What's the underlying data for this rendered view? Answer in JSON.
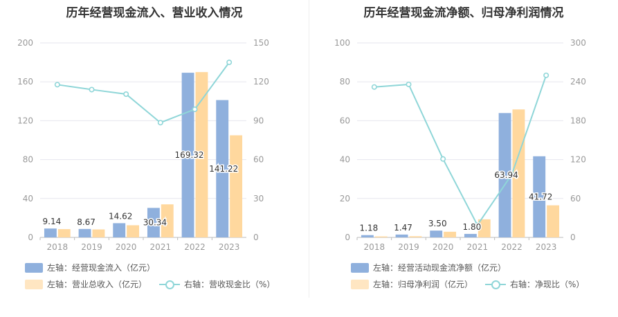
{
  "chart_data": [
    {
      "type": "bar",
      "title": "历年经营现金流入、营业收入情况",
      "categories": [
        "2018",
        "2019",
        "2020",
        "2021",
        "2022",
        "2023"
      ],
      "left_axis": {
        "ticks": [
          "0",
          "40",
          "80",
          "120",
          "160",
          "200"
        ],
        "ylim": [
          0,
          200
        ]
      },
      "right_axis": {
        "ticks": [
          "0",
          "30",
          "60",
          "90",
          "120",
          "150"
        ],
        "ylim": [
          0,
          150
        ]
      },
      "series": [
        {
          "name": "左轴：经营现金流入（亿元）",
          "kind": "bar",
          "axis": "left",
          "color": "#8fb0dd",
          "values": [
            9.14,
            8.67,
            14.62,
            30.34,
            169.32,
            141.22
          ],
          "labels": [
            "9.14",
            "8.67",
            "14.62",
            "30.34",
            "169.32",
            "141.22"
          ]
        },
        {
          "name": "左轴：营业总收入（亿元）",
          "kind": "bar",
          "axis": "left",
          "color": "#ffd89e",
          "values": [
            8.5,
            8.2,
            12.5,
            34.0,
            170.0,
            105.0
          ]
        },
        {
          "name": "右轴：营收现金比（%）",
          "kind": "line",
          "axis": "right",
          "color": "#8fd6d8",
          "values": [
            117.8,
            114.0,
            110.5,
            88.5,
            98.8,
            135.0
          ]
        }
      ],
      "legend_position": "bottom",
      "grid": true
    },
    {
      "type": "bar",
      "title": "历年经营现金流净额、归母净利润情况",
      "categories": [
        "2018",
        "2019",
        "2020",
        "2021",
        "2022",
        "2023"
      ],
      "left_axis": {
        "ticks": [
          "0",
          "20",
          "40",
          "60",
          "80",
          "100"
        ],
        "ylim": [
          0,
          100
        ]
      },
      "right_axis": {
        "ticks": [
          "0",
          "60",
          "120",
          "180",
          "240",
          "300"
        ],
        "ylim": [
          0,
          300
        ]
      },
      "series": [
        {
          "name": "左轴：经营活动现金流净额（亿元）",
          "kind": "bar",
          "axis": "left",
          "color": "#8fb0dd",
          "values": [
            1.18,
            1.47,
            3.5,
            1.8,
            63.94,
            41.72
          ],
          "labels": [
            "1.18",
            "1.47",
            "3.50",
            "1.80",
            "63.94",
            "41.72"
          ]
        },
        {
          "name": "左轴：归母净利润（亿元）",
          "kind": "bar",
          "axis": "left",
          "color": "#ffd89e",
          "values": [
            0.5,
            0.6,
            2.9,
            9.3,
            65.8,
            16.5
          ]
        },
        {
          "name": "右轴：净现比（%）",
          "kind": "line",
          "axis": "right",
          "color": "#8fd6d8",
          "values": [
            232,
            236,
            121,
            19,
            97,
            250
          ]
        }
      ],
      "legend_position": "bottom",
      "grid": true
    }
  ]
}
